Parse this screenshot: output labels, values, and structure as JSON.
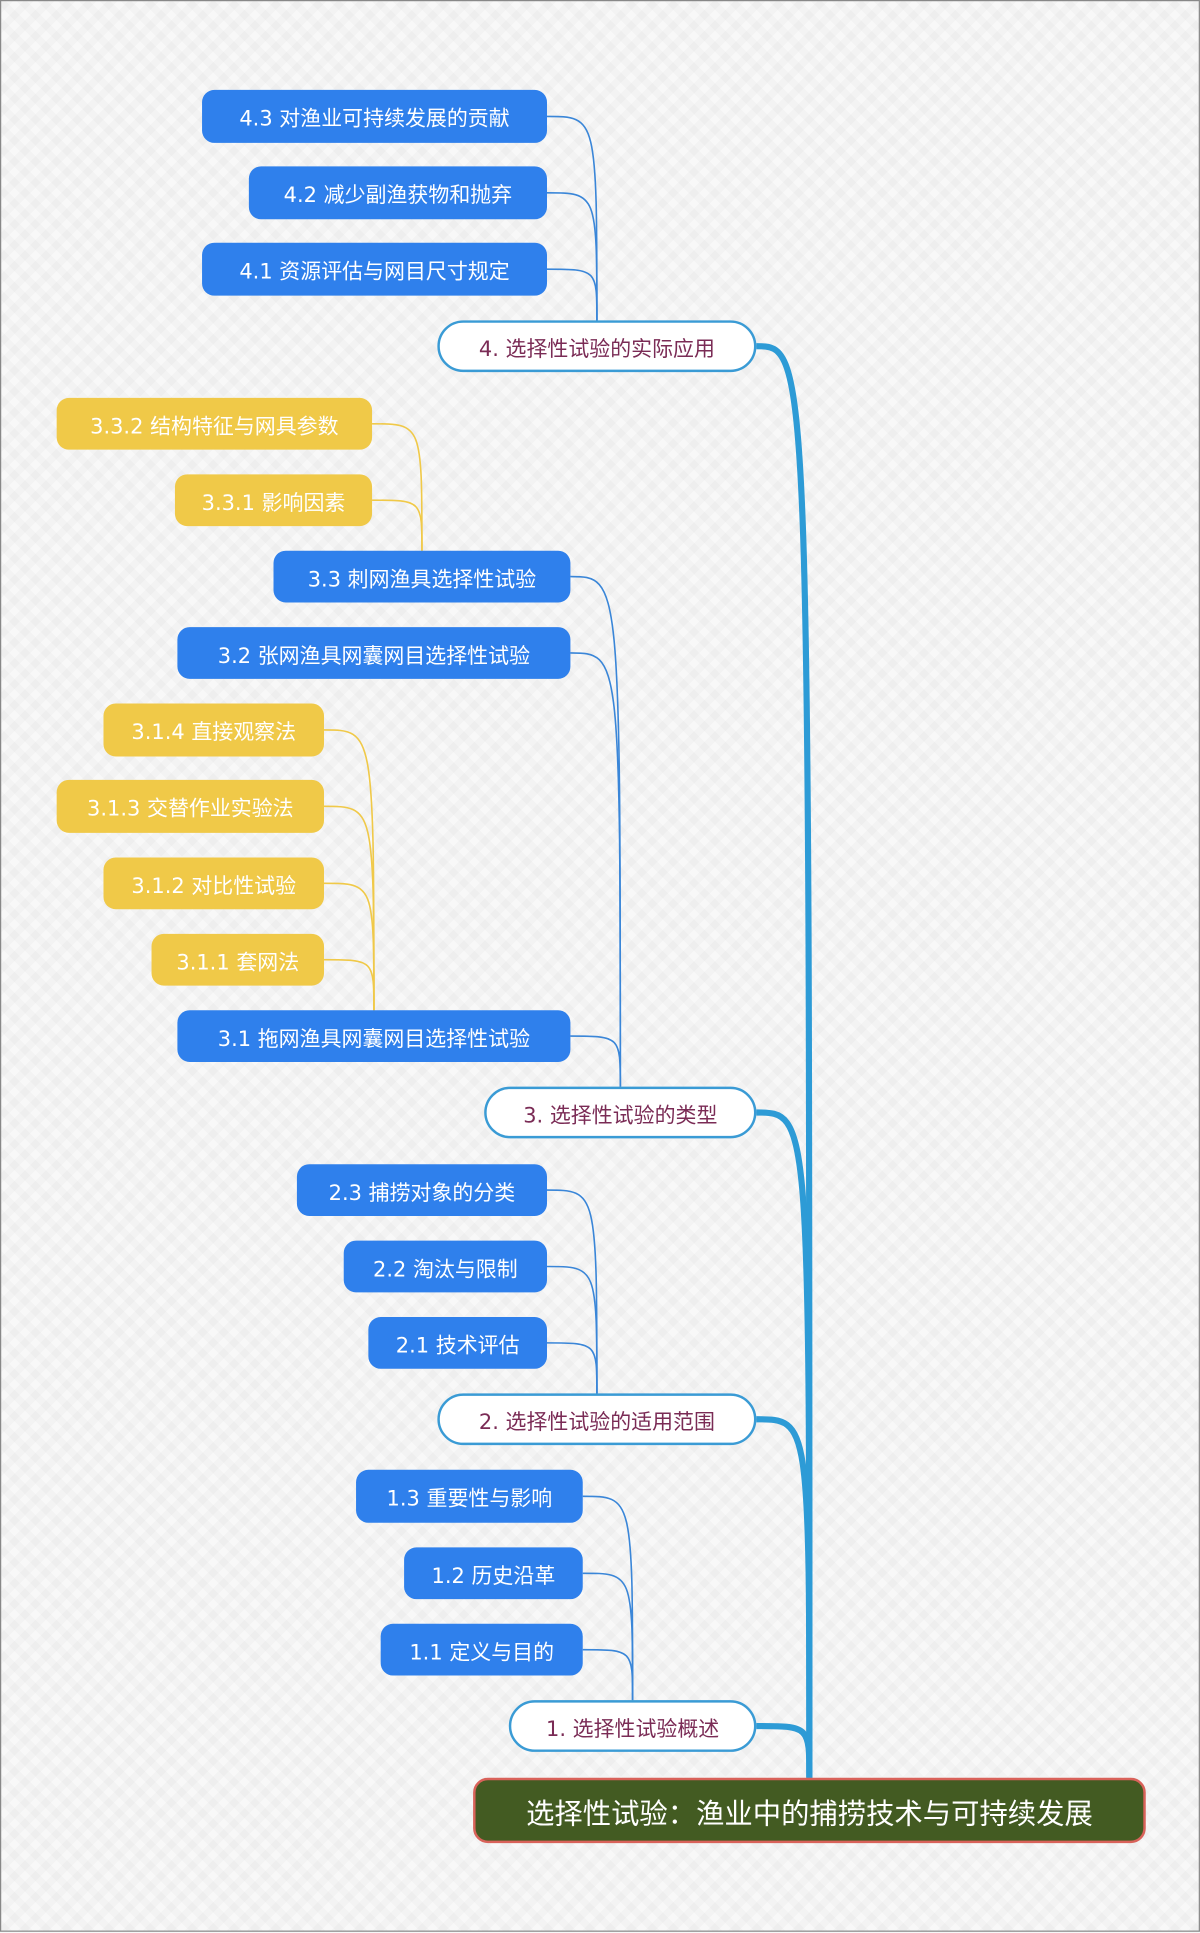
{
  "colors": {
    "child": "#2f80ec",
    "grandchild": "#f0c948",
    "branch": "#2d9bd6",
    "root_fill": "#435b22",
    "root_border": "#d9625a",
    "level1_text": "#7a2b55"
  },
  "root": {
    "label": "选择性试验：渔业中的捕捞技术与可持续发展"
  },
  "branches": [
    {
      "label": "1. 选择性试验概述",
      "children": [
        {
          "label": "1.1 定义与目的"
        },
        {
          "label": "1.2 历史沿革"
        },
        {
          "label": "1.3 重要性与影响"
        }
      ]
    },
    {
      "label": "2. 选择性试验的适用范围",
      "children": [
        {
          "label": "2.1 技术评估"
        },
        {
          "label": "2.2 淘汰与限制"
        },
        {
          "label": "2.3 捕捞对象的分类"
        }
      ]
    },
    {
      "label": "3. 选择性试验的类型",
      "children": [
        {
          "label": "3.1 拖网渔具网囊网目选择性试验",
          "children": [
            {
              "label": "3.1.1 套网法"
            },
            {
              "label": "3.1.2 对比性试验"
            },
            {
              "label": "3.1.3 交替作业实验法"
            },
            {
              "label": "3.1.4 直接观察法"
            }
          ]
        },
        {
          "label": "3.2 张网渔具网囊网目选择性试验"
        },
        {
          "label": "3.3 刺网渔具选择性试验",
          "children": [
            {
              "label": "3.3.1 影响因素"
            },
            {
              "label": "3.3.2 结构特征与网具参数"
            }
          ]
        }
      ]
    },
    {
      "label": "4. 选择性试验的实际应用",
      "children": [
        {
          "label": "4.1 资源评估与网目尺寸规定"
        },
        {
          "label": "4.2 减少副渔获物和抛弃"
        },
        {
          "label": "4.3 对渔业可持续发展的贡献"
        }
      ]
    }
  ]
}
